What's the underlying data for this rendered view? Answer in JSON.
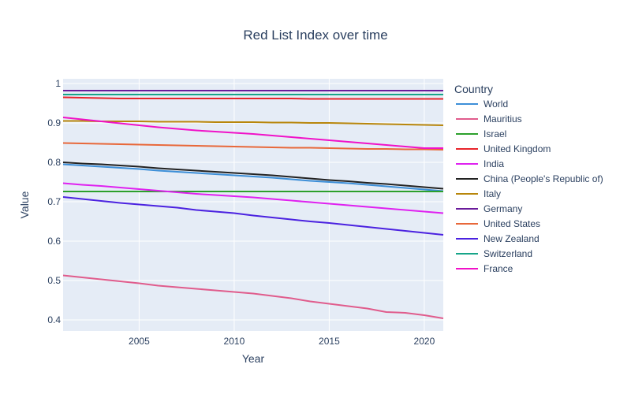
{
  "chart_data": {
    "type": "line",
    "title": "Red List Index over time",
    "xlabel": "Year",
    "ylabel": "Value",
    "xlim": [
      2001,
      2021
    ],
    "ylim": [
      0.372,
      1.012
    ],
    "x_ticks": [
      2005,
      2010,
      2015,
      2020
    ],
    "y_ticks": [
      0.4,
      0.5,
      0.6,
      0.7,
      0.8,
      0.9,
      1
    ],
    "y_tick_labels": [
      "0.4",
      "0.5",
      "0.6",
      "0.7",
      "0.8",
      "0.9",
      "1"
    ],
    "grid": true,
    "legend_title": "Country",
    "legend_position": "right",
    "x": [
      2001,
      2002,
      2003,
      2004,
      2005,
      2006,
      2007,
      2008,
      2009,
      2010,
      2011,
      2012,
      2013,
      2014,
      2015,
      2016,
      2017,
      2018,
      2019,
      2020,
      2021
    ],
    "series": [
      {
        "name": "World",
        "color": "#3d8fd8",
        "values": [
          0.795,
          0.792,
          0.789,
          0.786,
          0.783,
          0.779,
          0.776,
          0.773,
          0.77,
          0.767,
          0.764,
          0.761,
          0.757,
          0.753,
          0.75,
          0.747,
          0.743,
          0.739,
          0.735,
          0.731,
          0.727
        ]
      },
      {
        "name": "Mauritius",
        "color": "#e05c8c",
        "values": [
          0.513,
          0.508,
          0.503,
          0.498,
          0.493,
          0.487,
          0.483,
          0.479,
          0.475,
          0.471,
          0.467,
          0.461,
          0.455,
          0.447,
          0.441,
          0.435,
          0.429,
          0.42,
          0.418,
          0.412,
          0.404
        ]
      },
      {
        "name": "Israel",
        "color": "#2ca02c",
        "values": [
          0.726,
          0.726,
          0.726,
          0.726,
          0.726,
          0.726,
          0.726,
          0.726,
          0.726,
          0.726,
          0.726,
          0.726,
          0.726,
          0.726,
          0.726,
          0.726,
          0.726,
          0.726,
          0.726,
          0.726,
          0.726
        ]
      },
      {
        "name": "United Kingdom",
        "color": "#e8242b",
        "values": [
          0.965,
          0.964,
          0.963,
          0.962,
          0.962,
          0.962,
          0.962,
          0.962,
          0.962,
          0.962,
          0.962,
          0.962,
          0.962,
          0.961,
          0.961,
          0.961,
          0.961,
          0.961,
          0.961,
          0.961,
          0.961
        ]
      },
      {
        "name": "India",
        "color": "#df21f0",
        "values": [
          0.747,
          0.743,
          0.74,
          0.736,
          0.732,
          0.728,
          0.724,
          0.72,
          0.717,
          0.714,
          0.711,
          0.707,
          0.703,
          0.699,
          0.695,
          0.691,
          0.687,
          0.683,
          0.679,
          0.675,
          0.671
        ]
      },
      {
        "name": "China (People's Republic of)",
        "color": "#222222",
        "values": [
          0.8,
          0.797,
          0.795,
          0.792,
          0.789,
          0.785,
          0.782,
          0.779,
          0.776,
          0.773,
          0.77,
          0.767,
          0.763,
          0.759,
          0.755,
          0.752,
          0.748,
          0.745,
          0.741,
          0.737,
          0.733
        ]
      },
      {
        "name": "Italy",
        "color": "#b8860b",
        "values": [
          0.905,
          0.905,
          0.904,
          0.904,
          0.904,
          0.903,
          0.903,
          0.903,
          0.902,
          0.902,
          0.902,
          0.901,
          0.901,
          0.9,
          0.9,
          0.899,
          0.898,
          0.897,
          0.896,
          0.895,
          0.894
        ]
      },
      {
        "name": "Germany",
        "color": "#6a1b9a",
        "values": [
          0.982,
          0.982,
          0.982,
          0.982,
          0.982,
          0.982,
          0.982,
          0.982,
          0.982,
          0.982,
          0.982,
          0.982,
          0.982,
          0.982,
          0.982,
          0.982,
          0.982,
          0.982,
          0.982,
          0.982,
          0.982
        ]
      },
      {
        "name": "United States",
        "color": "#e8683a",
        "values": [
          0.849,
          0.848,
          0.847,
          0.846,
          0.845,
          0.844,
          0.843,
          0.842,
          0.841,
          0.84,
          0.839,
          0.838,
          0.837,
          0.837,
          0.836,
          0.835,
          0.834,
          0.834,
          0.833,
          0.833,
          0.832
        ]
      },
      {
        "name": "New Zealand",
        "color": "#4b22e0",
        "values": [
          0.712,
          0.707,
          0.702,
          0.697,
          0.693,
          0.689,
          0.685,
          0.679,
          0.675,
          0.671,
          0.665,
          0.66,
          0.655,
          0.65,
          0.646,
          0.641,
          0.636,
          0.631,
          0.626,
          0.621,
          0.616
        ]
      },
      {
        "name": "Switzerland",
        "color": "#17a589",
        "values": [
          0.972,
          0.972,
          0.972,
          0.972,
          0.972,
          0.972,
          0.972,
          0.972,
          0.972,
          0.972,
          0.972,
          0.972,
          0.972,
          0.972,
          0.972,
          0.972,
          0.972,
          0.972,
          0.972,
          0.972,
          0.972
        ]
      },
      {
        "name": "France",
        "color": "#f012c8",
        "values": [
          0.914,
          0.909,
          0.904,
          0.899,
          0.894,
          0.889,
          0.885,
          0.881,
          0.878,
          0.875,
          0.872,
          0.868,
          0.864,
          0.86,
          0.856,
          0.852,
          0.848,
          0.844,
          0.84,
          0.836,
          0.836
        ]
      }
    ]
  }
}
